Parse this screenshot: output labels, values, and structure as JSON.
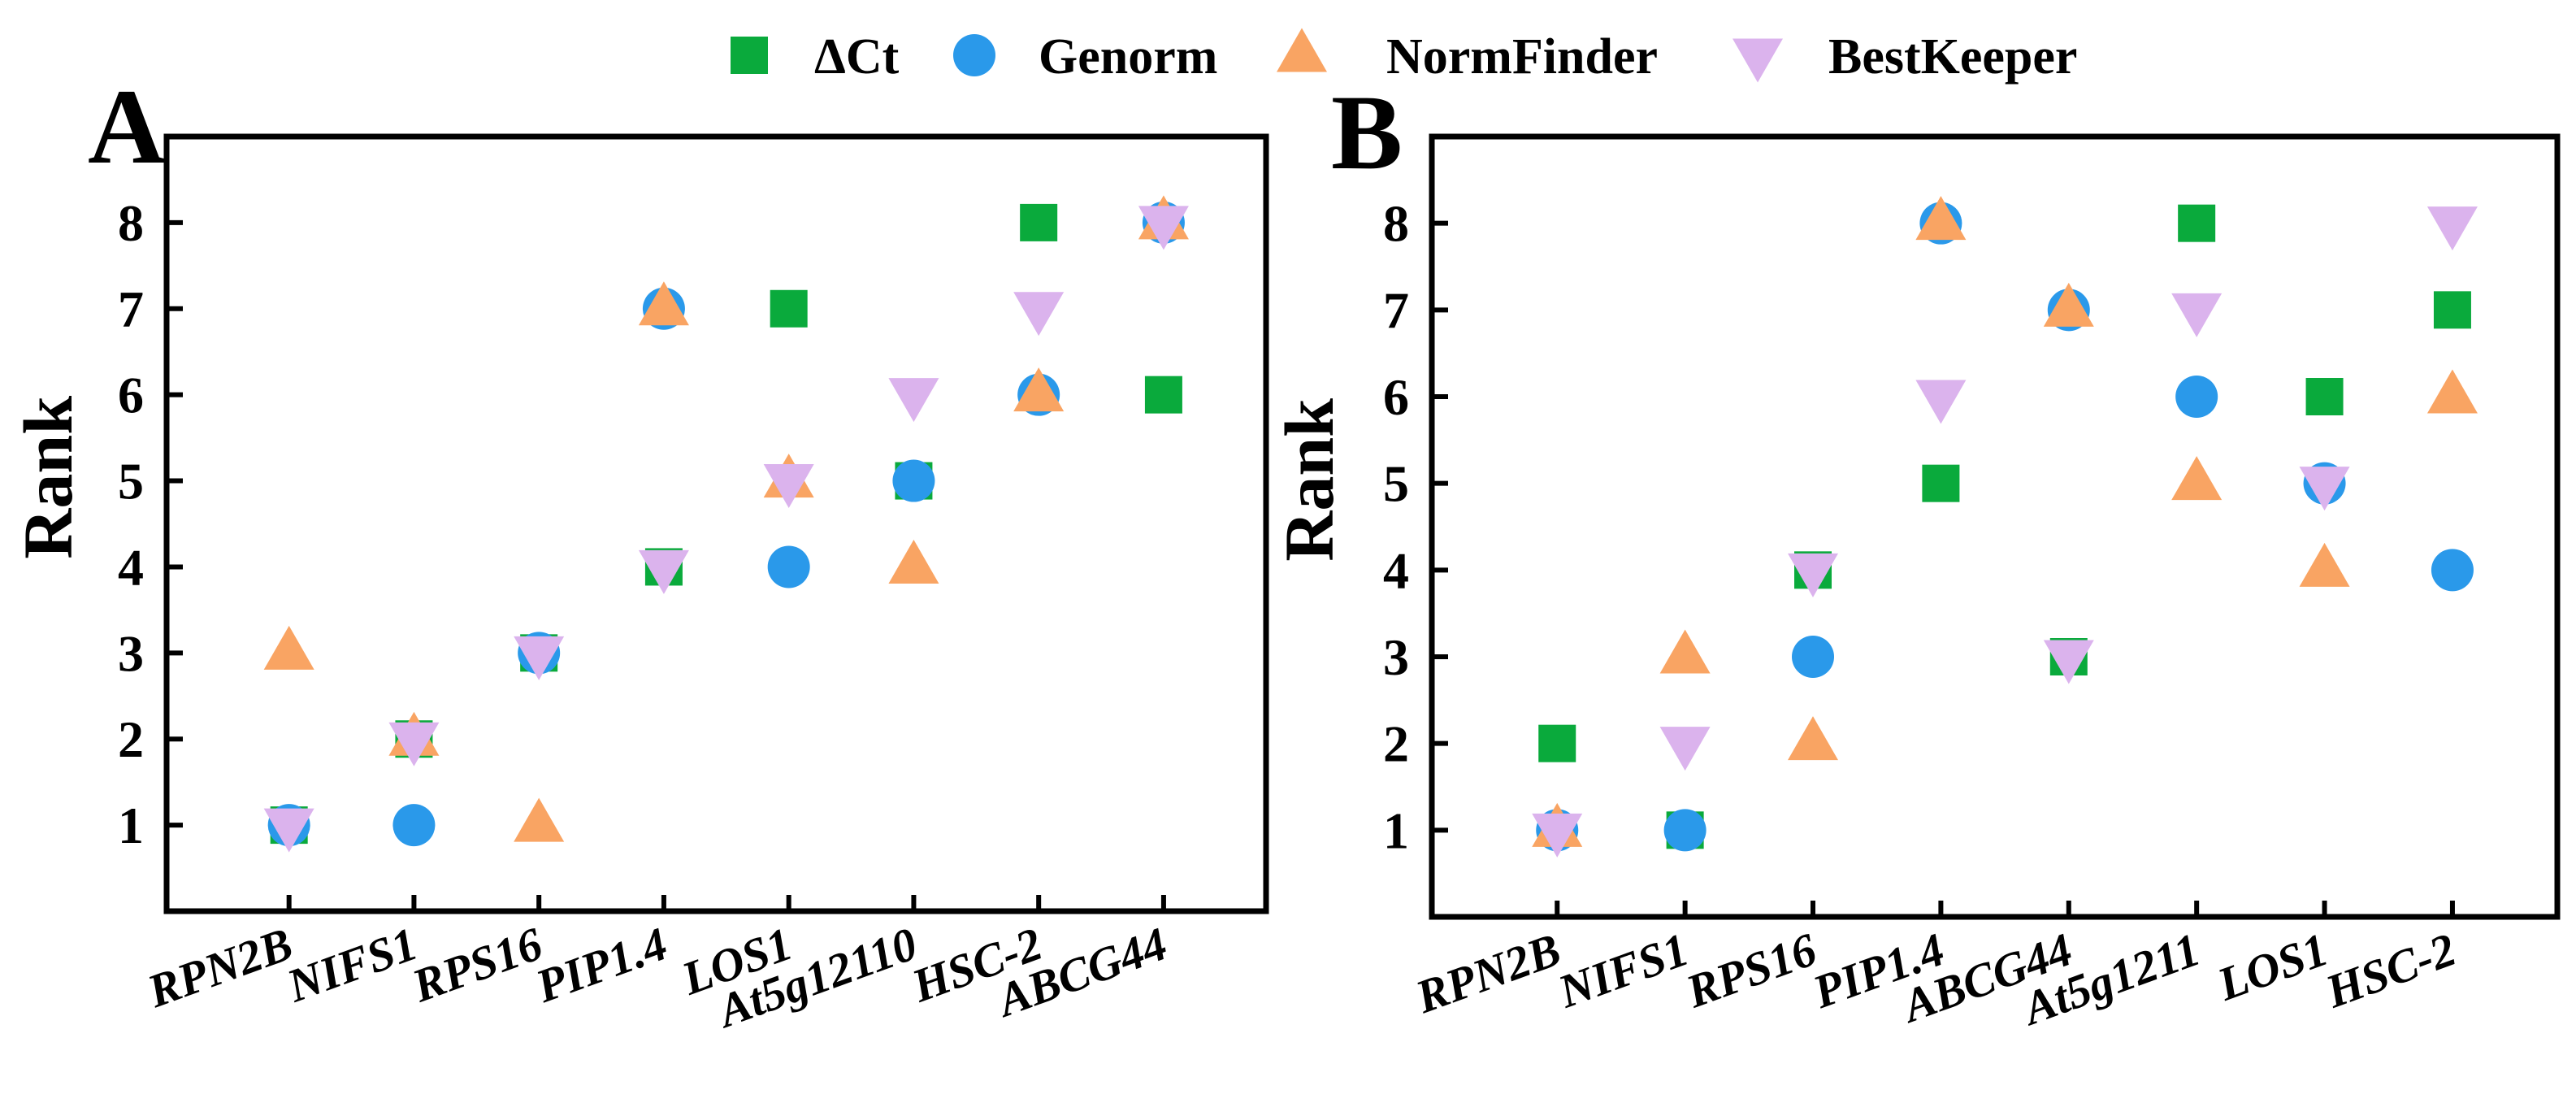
{
  "colors": {
    "dct": "#0aaa3c",
    "genorm": "#2a99ea",
    "normfinder": "#f9a463",
    "bestkeeper": "#dbb3ed"
  },
  "legend": [
    {
      "key": "dct",
      "label": "ΔCt",
      "marker": "square"
    },
    {
      "key": "genorm",
      "label": "Genorm",
      "marker": "circle"
    },
    {
      "key": "normfinder",
      "label": "NormFinder",
      "marker": "triangle-up"
    },
    {
      "key": "bestkeeper",
      "label": "BestKeeper",
      "marker": "triangle-down"
    }
  ],
  "chart_data": [
    {
      "panel": "A",
      "type": "scatter",
      "ylabel": "Rank",
      "ylim": [
        0,
        9
      ],
      "yticks": [
        1,
        2,
        3,
        4,
        5,
        6,
        7,
        8
      ],
      "categories": [
        "RPN2B",
        "NIFS1",
        "RPS16",
        "PIP1.4",
        "LOS1",
        "At5g12110",
        "HSC-2",
        "ABCG44"
      ],
      "series": [
        {
          "name": "ΔCt",
          "key": "dct",
          "values": [
            1,
            2,
            3,
            4,
            7,
            5,
            8,
            6
          ]
        },
        {
          "name": "Genorm",
          "key": "genorm",
          "values": [
            1,
            1,
            3,
            7,
            4,
            5,
            6,
            8
          ]
        },
        {
          "name": "NormFinder",
          "key": "normfinder",
          "values": [
            3,
            2,
            1,
            7,
            5,
            4,
            6,
            8
          ]
        },
        {
          "name": "BestKeeper",
          "key": "bestkeeper",
          "values": [
            1,
            2,
            3,
            4,
            5,
            6,
            7,
            8
          ]
        }
      ]
    },
    {
      "panel": "B",
      "type": "scatter",
      "ylabel": "Rank",
      "ylim": [
        0,
        9
      ],
      "yticks": [
        1,
        2,
        3,
        4,
        5,
        6,
        7,
        8
      ],
      "categories": [
        "RPN2B",
        "NIFS1",
        "RPS16",
        "PIP1.4",
        "ABCG44",
        "At5g1211",
        "LOS1",
        "HSC-2"
      ],
      "series": [
        {
          "name": "ΔCt",
          "key": "dct",
          "values": [
            2,
            1,
            4,
            5,
            3,
            8,
            6,
            7
          ]
        },
        {
          "name": "Genorm",
          "key": "genorm",
          "values": [
            1,
            1,
            3,
            8,
            7,
            6,
            5,
            4
          ]
        },
        {
          "name": "NormFinder",
          "key": "normfinder",
          "values": [
            1,
            3,
            2,
            8,
            7,
            5,
            4,
            6
          ]
        },
        {
          "name": "BestKeeper",
          "key": "bestkeeper",
          "values": [
            1,
            2,
            4,
            6,
            3,
            7,
            5,
            8
          ]
        }
      ]
    }
  ]
}
